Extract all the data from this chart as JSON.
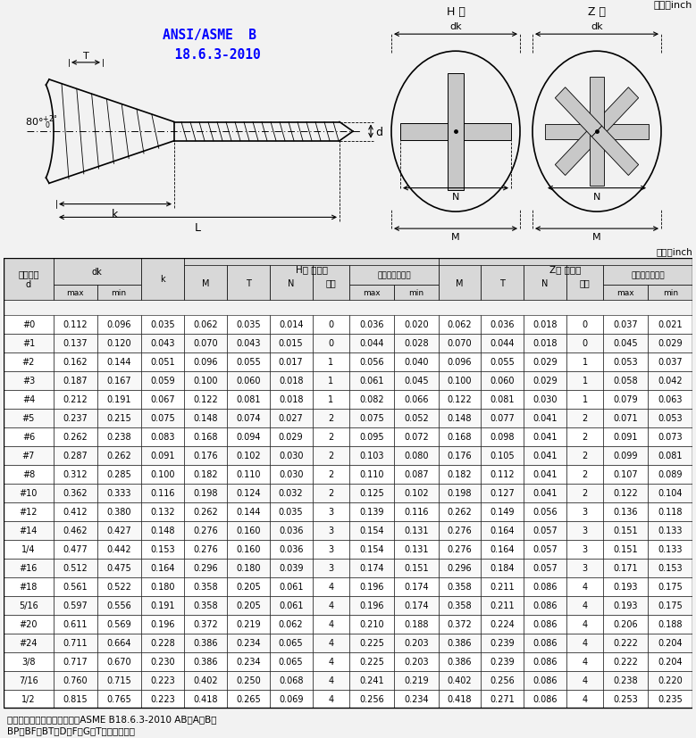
{
  "title_standard": "ANSI/ASME  B\n  18.6.3-2010",
  "unit_text": "单位：inch",
  "rows": [
    [
      "#0",
      "0.112",
      "0.096",
      "0.035",
      "0.062",
      "0.035",
      "0.014",
      "0",
      "0.036",
      "0.020",
      "0.062",
      "0.036",
      "0.018",
      "0",
      "0.037",
      "0.021"
    ],
    [
      "#1",
      "0.137",
      "0.120",
      "0.043",
      "0.070",
      "0.043",
      "0.015",
      "0",
      "0.044",
      "0.028",
      "0.070",
      "0.044",
      "0.018",
      "0",
      "0.045",
      "0.029"
    ],
    [
      "#2",
      "0.162",
      "0.144",
      "0.051",
      "0.096",
      "0.055",
      "0.017",
      "1",
      "0.056",
      "0.040",
      "0.096",
      "0.055",
      "0.029",
      "1",
      "0.053",
      "0.037"
    ],
    [
      "#3",
      "0.187",
      "0.167",
      "0.059",
      "0.100",
      "0.060",
      "0.018",
      "1",
      "0.061",
      "0.045",
      "0.100",
      "0.060",
      "0.029",
      "1",
      "0.058",
      "0.042"
    ],
    [
      "#4",
      "0.212",
      "0.191",
      "0.067",
      "0.122",
      "0.081",
      "0.018",
      "1",
      "0.082",
      "0.066",
      "0.122",
      "0.081",
      "0.030",
      "1",
      "0.079",
      "0.063"
    ],
    [
      "#5",
      "0.237",
      "0.215",
      "0.075",
      "0.148",
      "0.074",
      "0.027",
      "2",
      "0.075",
      "0.052",
      "0.148",
      "0.077",
      "0.041",
      "2",
      "0.071",
      "0.053"
    ],
    [
      "#6",
      "0.262",
      "0.238",
      "0.083",
      "0.168",
      "0.094",
      "0.029",
      "2",
      "0.095",
      "0.072",
      "0.168",
      "0.098",
      "0.041",
      "2",
      "0.091",
      "0.073"
    ],
    [
      "#7",
      "0.287",
      "0.262",
      "0.091",
      "0.176",
      "0.102",
      "0.030",
      "2",
      "0.103",
      "0.080",
      "0.176",
      "0.105",
      "0.041",
      "2",
      "0.099",
      "0.081"
    ],
    [
      "#8",
      "0.312",
      "0.285",
      "0.100",
      "0.182",
      "0.110",
      "0.030",
      "2",
      "0.110",
      "0.087",
      "0.182",
      "0.112",
      "0.041",
      "2",
      "0.107",
      "0.089"
    ],
    [
      "#10",
      "0.362",
      "0.333",
      "0.116",
      "0.198",
      "0.124",
      "0.032",
      "2",
      "0.125",
      "0.102",
      "0.198",
      "0.127",
      "0.041",
      "2",
      "0.122",
      "0.104"
    ],
    [
      "#12",
      "0.412",
      "0.380",
      "0.132",
      "0.262",
      "0.144",
      "0.035",
      "3",
      "0.139",
      "0.116",
      "0.262",
      "0.149",
      "0.056",
      "3",
      "0.136",
      "0.118"
    ],
    [
      "#14",
      "0.462",
      "0.427",
      "0.148",
      "0.276",
      "0.160",
      "0.036",
      "3",
      "0.154",
      "0.131",
      "0.276",
      "0.164",
      "0.057",
      "3",
      "0.151",
      "0.133"
    ],
    [
      "1/4",
      "0.477",
      "0.442",
      "0.153",
      "0.276",
      "0.160",
      "0.036",
      "3",
      "0.154",
      "0.131",
      "0.276",
      "0.164",
      "0.057",
      "3",
      "0.151",
      "0.133"
    ],
    [
      "#16",
      "0.512",
      "0.475",
      "0.164",
      "0.296",
      "0.180",
      "0.039",
      "3",
      "0.174",
      "0.151",
      "0.296",
      "0.184",
      "0.057",
      "3",
      "0.171",
      "0.153"
    ],
    [
      "#18",
      "0.561",
      "0.522",
      "0.180",
      "0.358",
      "0.205",
      "0.061",
      "4",
      "0.196",
      "0.174",
      "0.358",
      "0.211",
      "0.086",
      "4",
      "0.193",
      "0.175"
    ],
    [
      "5/16",
      "0.597",
      "0.556",
      "0.191",
      "0.358",
      "0.205",
      "0.061",
      "4",
      "0.196",
      "0.174",
      "0.358",
      "0.211",
      "0.086",
      "4",
      "0.193",
      "0.175"
    ],
    [
      "#20",
      "0.611",
      "0.569",
      "0.196",
      "0.372",
      "0.219",
      "0.062",
      "4",
      "0.210",
      "0.188",
      "0.372",
      "0.224",
      "0.086",
      "4",
      "0.206",
      "0.188"
    ],
    [
      "#24",
      "0.711",
      "0.664",
      "0.228",
      "0.386",
      "0.234",
      "0.065",
      "4",
      "0.225",
      "0.203",
      "0.386",
      "0.239",
      "0.086",
      "4",
      "0.222",
      "0.204"
    ],
    [
      "3/8",
      "0.717",
      "0.670",
      "0.230",
      "0.386",
      "0.234",
      "0.065",
      "4",
      "0.225",
      "0.203",
      "0.386",
      "0.239",
      "0.086",
      "4",
      "0.222",
      "0.204"
    ],
    [
      "7/16",
      "0.760",
      "0.715",
      "0.223",
      "0.402",
      "0.250",
      "0.068",
      "4",
      "0.241",
      "0.219",
      "0.402",
      "0.256",
      "0.086",
      "4",
      "0.238",
      "0.220"
    ],
    [
      "1/2",
      "0.815",
      "0.765",
      "0.223",
      "0.418",
      "0.265",
      "0.069",
      "4",
      "0.256",
      "0.234",
      "0.418",
      "0.271",
      "0.086",
      "4",
      "0.253",
      "0.235"
    ]
  ],
  "footnote1": "备注：负纹及尾端形式，参照ASME B18.6.3-2010 AB、A、B、",
  "footnote2": "BP、BF、BT、D、F、G、T型负纹及尾端",
  "col_h1": [
    "公称直径\nd",
    "dk",
    "",
    "k",
    "H型 十字槽",
    "",
    "",
    "",
    "",
    "",
    "Z型 十字槽",
    "",
    "",
    "",
    "",
    ""
  ],
  "col_h2": [
    "",
    "max",
    "min",
    "",
    "M",
    "T",
    "N",
    "槽号",
    "十字槽插入深度",
    "",
    "M",
    "T",
    "N",
    "槽号",
    "十字槽插入深度",
    ""
  ],
  "col_h3": [
    "",
    "",
    "",
    "",
    "",
    "",
    "",
    "",
    "max",
    "min",
    "",
    "",
    "",
    "",
    "max",
    "min"
  ]
}
